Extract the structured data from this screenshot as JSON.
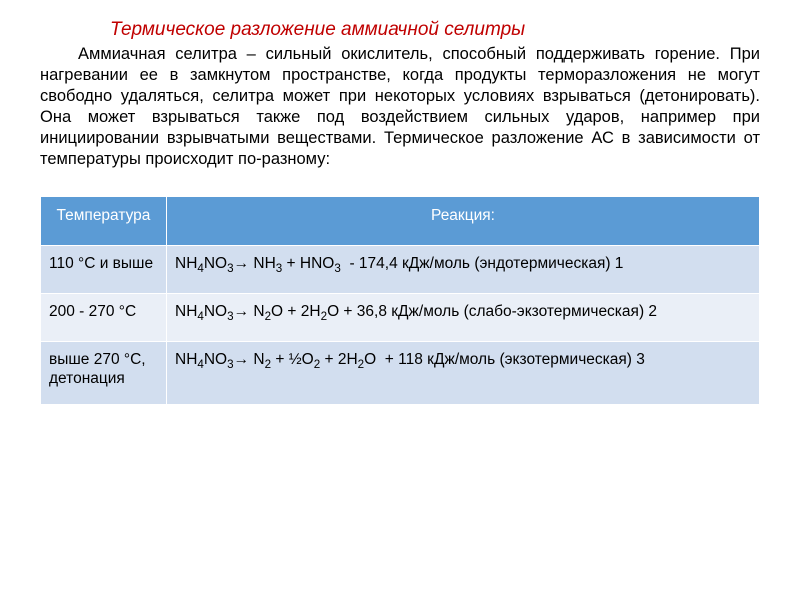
{
  "title": "Термическое разложение аммиачной селитры",
  "paragraph": "Аммиачная селитра – сильный окислитель, способный поддерживать горение. При нагревании ее в замкнутом пространстве, когда продукты терморазложения не могут свободно удаляться, селитра может при некоторых условиях взрываться (детонировать). Она может взрываться также под воздействием сильных ударов, например при инициировании взрывчатыми веществами. Термическое разложение АС в зависимости от температуры происходит по-разному:",
  "table": {
    "header_bg": "#5b9bd5",
    "header_color": "#ffffff",
    "row_bg_odd": "#d2deef",
    "row_bg_even": "#eaeff7",
    "cell_color": "#000000",
    "headers": {
      "temp": "Температура",
      "reaction": "Реакция:"
    },
    "rows": [
      {
        "temp": "110 °С и выше",
        "reaction_html": "NH<span class=\"sub\">4</span>NO<span class=\"sub\">3</span>→ NH<span class=\"sub\">3</span> + HNO<span class=\"sub\">3</span>&nbsp;&nbsp;- 174,4 кДж/моль (эндотермическая) 1"
      },
      {
        "temp": "200 - 270 °С",
        "reaction_html": "NH<span class=\"sub\">4</span>NO<span class=\"sub\">3</span>→ N<span class=\"sub\">2</span>O + 2H<span class=\"sub\">2</span>O + 36,8 кДж/моль (слабо-экзотермическая) 2"
      },
      {
        "temp": "выше 270 °С, детонация",
        "reaction_html": "NH<span class=\"sub\">4</span>NO<span class=\"sub\">3</span>→ N<span class=\"sub\">2</span> + ½O<span class=\"sub\">2</span> + 2H<span class=\"sub\">2</span>O&nbsp;&nbsp;+ 118 кДж/моль (экзотермическая) 3"
      }
    ]
  },
  "colors": {
    "title": "#c00000",
    "body_text": "#000000",
    "background": "#ffffff"
  }
}
